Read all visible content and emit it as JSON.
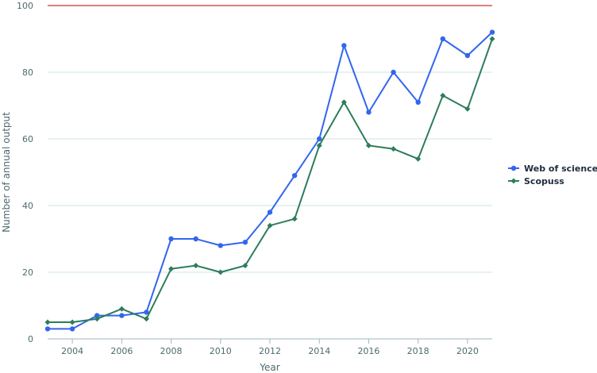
{
  "chart_data": {
    "type": "line",
    "xlabel": "Year",
    "ylabel": "Number of annual output",
    "x": [
      2003,
      2004,
      2005,
      2006,
      2007,
      2008,
      2009,
      2010,
      2011,
      2012,
      2013,
      2014,
      2015,
      2016,
      2017,
      2018,
      2019,
      2020,
      2021
    ],
    "xlim": [
      2003,
      2021
    ],
    "ylim": [
      0,
      100
    ],
    "x_ticks": [
      "2004",
      "2006",
      "2008",
      "2010",
      "2012",
      "2014",
      "2016",
      "2018",
      "2020"
    ],
    "y_ticks": [
      "0",
      "20",
      "40",
      "60",
      "80",
      "100"
    ],
    "grid": "horizontal",
    "reference_line": {
      "y": 100,
      "color": "#cc3333"
    },
    "legend_position": "right",
    "series": [
      {
        "name": "Web of science",
        "color": "#3366ee",
        "marker": "circle",
        "values": [
          3,
          3,
          7,
          7,
          8,
          30,
          30,
          28,
          29,
          38,
          49,
          60,
          88,
          68,
          80,
          71,
          90,
          85,
          92
        ]
      },
      {
        "name": "Scopuss",
        "color": "#2e7d5b",
        "marker": "diamond",
        "values": [
          5,
          5,
          6,
          9,
          6,
          21,
          22,
          20,
          22,
          34,
          36,
          58,
          71,
          58,
          57,
          54,
          73,
          69,
          90
        ]
      }
    ]
  }
}
